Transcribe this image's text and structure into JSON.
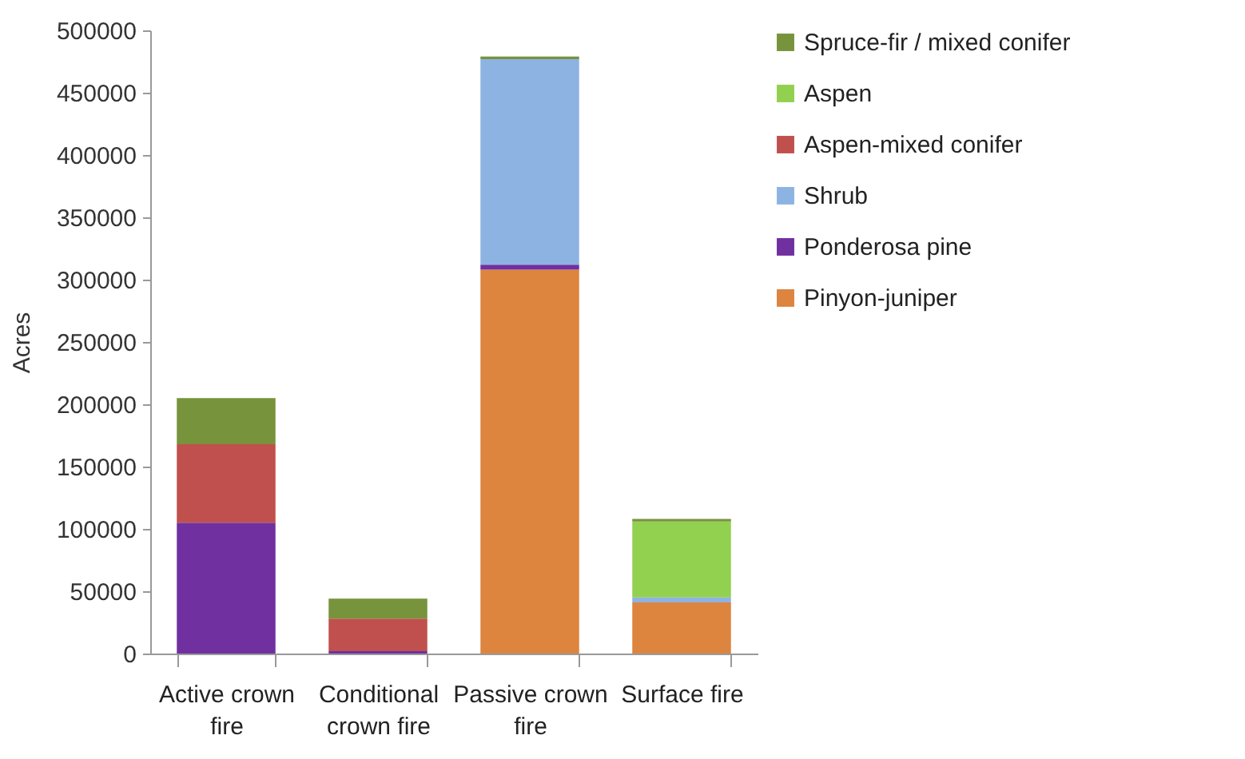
{
  "chart_data": {
    "type": "bar",
    "stacked": true,
    "ylabel": "Acres",
    "categories": [
      "Active crown fire",
      "Conditional crown fire",
      "Passive crown fire",
      "Surface fire"
    ],
    "series": [
      {
        "name": "Pinyon-juniper",
        "color": "#dd843f",
        "values": [
          0,
          0,
          308000,
          41000
        ]
      },
      {
        "name": "Ponderosa pine",
        "color": "#7030a0",
        "values": [
          105000,
          2000,
          4000,
          0
        ]
      },
      {
        "name": "Shrub",
        "color": "#8db3e2",
        "values": [
          0,
          0,
          165000,
          4000
        ]
      },
      {
        "name": "Aspen-mixed conifer",
        "color": "#c0504d",
        "values": [
          63000,
          26000,
          0,
          0
        ]
      },
      {
        "name": "Aspen",
        "color": "#92d050",
        "values": [
          0,
          0,
          0,
          61000
        ]
      },
      {
        "name": "Spruce-fir / mixed conifer",
        "color": "#77933c",
        "values": [
          37000,
          16000,
          2000,
          2000
        ]
      }
    ],
    "ylim": [
      0,
      500000
    ],
    "yticks": [
      0,
      50000,
      100000,
      150000,
      200000,
      250000,
      300000,
      350000,
      400000,
      450000,
      500000
    ],
    "grid": false,
    "legend": "right"
  }
}
